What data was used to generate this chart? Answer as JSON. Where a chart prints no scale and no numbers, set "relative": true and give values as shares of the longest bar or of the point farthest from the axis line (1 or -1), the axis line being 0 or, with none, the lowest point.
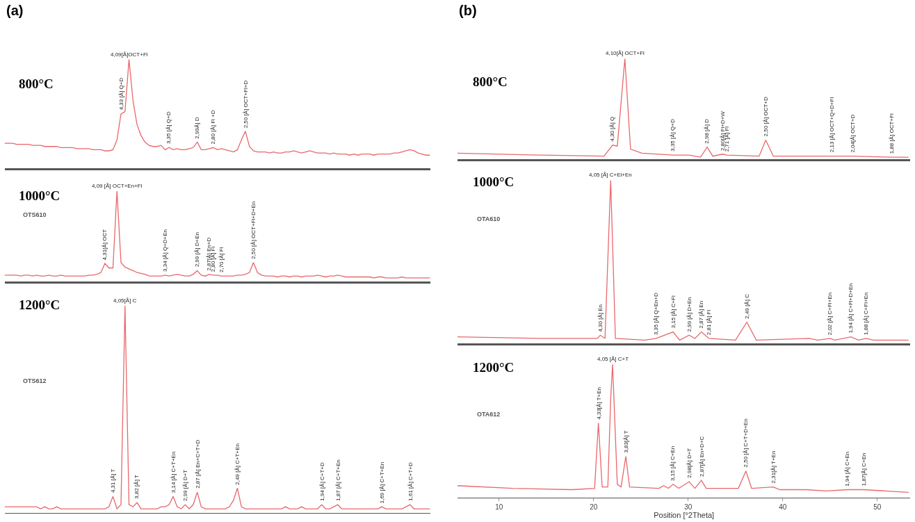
{
  "chart_data": [
    {
      "type": "line",
      "title": "(a)",
      "relative": true,
      "tick_labels": false,
      "categories": [
        null,
        null,
        null,
        null,
        null,
        null,
        null,
        null,
        null,
        null,
        null,
        null,
        null,
        null,
        null,
        null,
        null,
        null,
        null,
        null,
        null,
        null,
        null,
        null,
        null,
        null,
        null,
        null,
        null,
        null,
        null,
        null,
        null,
        null,
        null,
        null,
        null,
        null,
        null,
        null,
        null,
        null,
        null,
        null,
        null,
        null,
        null,
        null,
        null,
        null,
        null,
        null,
        null,
        null,
        null,
        null,
        null,
        null,
        null,
        null,
        null,
        null,
        null,
        null,
        null,
        null,
        null,
        null,
        null,
        null,
        null,
        null,
        null,
        null,
        null,
        null,
        null,
        null,
        null,
        null,
        null,
        null,
        null,
        null,
        null,
        null,
        null,
        null,
        null,
        null,
        null,
        null,
        null,
        null,
        null,
        null,
        null,
        null,
        null,
        null,
        null,
        null,
        null,
        null,
        null,
        null,
        null
      ],
      "series": [
        {
          "color": "#e8676b",
          "values": [
            0.23,
            0.23,
            0.23,
            0.22,
            0.22,
            0.22,
            0.22,
            0.21,
            0.21,
            0.21,
            0.2,
            0.2,
            0.2,
            0.2,
            0.19,
            0.19,
            0.19,
            0.19,
            0.18,
            0.18,
            0.18,
            0.18,
            0.17,
            0.17,
            0.17,
            0.16,
            0.16,
            0.17,
            0.26,
            0.5,
            0.52,
            1.0,
            0.62,
            0.4,
            0.3,
            0.24,
            0.21,
            0.2,
            0.2,
            0.21,
            0.17,
            0.19,
            0.17,
            0.18,
            0.17,
            0.17,
            0.18,
            0.19,
            0.24,
            0.17,
            0.17,
            0.18,
            0.19,
            0.17,
            0.18,
            0.17,
            0.16,
            0.15,
            0.17,
            0.26,
            0.34,
            0.2,
            0.16,
            0.15,
            0.15,
            0.15,
            0.14,
            0.15,
            0.14,
            0.14,
            0.15,
            0.15,
            0.16,
            0.15,
            0.14,
            0.15,
            0.16,
            0.15,
            0.14,
            0.14,
            0.14,
            0.13,
            0.14,
            0.13,
            0.13,
            0.13,
            0.12,
            0.13,
            0.12,
            0.13,
            0.13,
            0.13,
            0.12,
            0.13,
            0.13,
            0.13,
            0.13,
            0.14,
            0.14,
            0.15,
            0.16,
            0.17,
            0.16,
            0.14,
            0.13,
            0.12,
            0.12
          ]
        }
      ],
      "annotations": [
        "800°C",
        {
          "text": "4,33 [Å] Q+D",
          "y": 0.5
        },
        {
          "text": "4,09[Å]OCT+Fl",
          "y": 1.0
        },
        {
          "text": "3,35 [Å] Q+D",
          "y": 0.19
        },
        {
          "text": "2,99Å] D",
          "y": 0.24
        },
        {
          "text": "2,80 [Å] Fl +D",
          "y": 0.19
        },
        {
          "text": "2,50 [Å] OCT+Fl+D",
          "y": 0.34
        }
      ]
    },
    {
      "type": "line",
      "relative": true,
      "tick_labels": false,
      "categories": [
        null,
        null,
        null,
        null,
        null,
        null,
        null,
        null,
        null,
        null,
        null,
        null,
        null,
        null,
        null,
        null,
        null,
        null,
        null,
        null,
        null,
        null,
        null,
        null,
        null,
        null,
        null,
        null,
        null,
        null,
        null,
        null,
        null,
        null,
        null,
        null,
        null,
        null,
        null,
        null,
        null,
        null,
        null,
        null,
        null,
        null,
        null,
        null,
        null,
        null,
        null,
        null,
        null,
        null,
        null,
        null,
        null,
        null,
        null,
        null,
        null,
        null,
        null,
        null,
        null,
        null,
        null,
        null,
        null,
        null,
        null,
        null,
        null,
        null,
        null,
        null,
        null,
        null,
        null,
        null,
        null,
        null,
        null,
        null,
        null,
        null,
        null,
        null,
        null,
        null,
        null,
        null,
        null,
        null,
        null,
        null,
        null,
        null,
        null,
        null,
        null,
        null,
        null,
        null,
        null,
        null,
        null
      ],
      "series": [
        {
          "color": "#e8676b",
          "values": [
            0.07,
            0.07,
            0.07,
            0.07,
            0.06,
            0.07,
            0.07,
            0.06,
            0.07,
            0.06,
            0.06,
            0.07,
            0.06,
            0.06,
            0.07,
            0.06,
            0.06,
            0.06,
            0.06,
            0.06,
            0.06,
            0.07,
            0.07,
            0.08,
            0.1,
            0.2,
            0.15,
            0.15,
            1.0,
            0.21,
            0.16,
            0.14,
            0.12,
            0.1,
            0.09,
            0.08,
            0.06,
            0.06,
            0.06,
            0.06,
            0.07,
            0.06,
            0.07,
            0.08,
            0.07,
            0.06,
            0.06,
            0.08,
            0.12,
            0.07,
            0.06,
            0.08,
            0.07,
            0.07,
            0.06,
            0.06,
            0.06,
            0.06,
            0.07,
            0.07,
            0.08,
            0.1,
            0.21,
            0.1,
            0.07,
            0.06,
            0.06,
            0.06,
            0.05,
            0.06,
            0.06,
            0.05,
            0.06,
            0.06,
            0.05,
            0.06,
            0.06,
            0.06,
            0.07,
            0.06,
            0.05,
            0.06,
            0.06,
            0.07,
            0.06,
            0.05,
            0.05,
            0.05,
            0.05,
            0.05,
            0.05,
            0.05,
            0.04,
            0.05,
            0.05,
            0.04,
            0.04,
            0.04,
            0.04,
            0.05,
            0.04,
            0.04,
            0.04,
            0.04,
            0.04,
            0.04,
            0.04
          ]
        }
      ],
      "annotations": [
        "1000°C",
        "OTS610",
        {
          "text": "4,31[Å] OCT",
          "y": 0.2
        },
        {
          "text": "4,09 [Å] OCT+En+Fl",
          "y": 1.0
        },
        {
          "text": "3,34 [Å] Q+D+En",
          "y": 0.07
        },
        {
          "text": "2,99 [Å] D+En",
          "y": 0.12
        },
        {
          "text": "2,87[Å] En+D",
          "y": 0.08
        },
        {
          "text": "2,80 [Å] Fl",
          "y": 0.07
        },
        {
          "text": "2,70 [Å] Fl",
          "y": 0.06
        },
        {
          "text": "2,50 [Å] OCT+Fl+D+En",
          "y": 0.21
        }
      ]
    },
    {
      "type": "line",
      "relative": true,
      "tick_labels": false,
      "categories": [
        null,
        null,
        null,
        null,
        null,
        null,
        null,
        null,
        null,
        null,
        null,
        null,
        null,
        null,
        null,
        null,
        null,
        null,
        null,
        null,
        null,
        null,
        null,
        null,
        null,
        null,
        null,
        null,
        null,
        null,
        null,
        null,
        null,
        null,
        null,
        null,
        null,
        null,
        null,
        null,
        null,
        null,
        null,
        null,
        null,
        null,
        null,
        null,
        null,
        null,
        null,
        null,
        null,
        null,
        null,
        null,
        null,
        null,
        null,
        null,
        null,
        null,
        null,
        null,
        null,
        null,
        null,
        null,
        null,
        null,
        null,
        null,
        null,
        null,
        null,
        null,
        null,
        null,
        null,
        null,
        null,
        null,
        null,
        null,
        null,
        null,
        null,
        null,
        null,
        null,
        null,
        null,
        null,
        null,
        null,
        null,
        null,
        null,
        null,
        null,
        null,
        null,
        null,
        null,
        null,
        null,
        null
      ],
      "series": [
        {
          "color": "#e8676b",
          "values": [
            0.03,
            0.03,
            0.03,
            0.03,
            0.03,
            0.03,
            0.03,
            0.03,
            0.03,
            0.02,
            0.03,
            0.02,
            0.02,
            0.03,
            0.02,
            0.02,
            0.02,
            0.02,
            0.02,
            0.02,
            0.02,
            0.02,
            0.02,
            0.02,
            0.02,
            0.02,
            0.03,
            0.08,
            0.02,
            0.04,
            1.0,
            0.04,
            0.03,
            0.05,
            0.02,
            0.02,
            0.02,
            0.02,
            0.02,
            0.03,
            0.03,
            0.04,
            0.08,
            0.03,
            0.02,
            0.04,
            0.02,
            0.04,
            0.1,
            0.03,
            0.02,
            0.02,
            0.02,
            0.02,
            0.02,
            0.02,
            0.03,
            0.06,
            0.12,
            0.03,
            0.02,
            0.02,
            0.02,
            0.02,
            0.02,
            0.02,
            0.02,
            0.02,
            0.02,
            0.02,
            0.03,
            0.02,
            0.02,
            0.02,
            0.03,
            0.02,
            0.02,
            0.02,
            0.02,
            0.04,
            0.02,
            0.02,
            0.03,
            0.04,
            0.02,
            0.02,
            0.02,
            0.02,
            0.02,
            0.02,
            0.02,
            0.02,
            0.02,
            0.02,
            0.03,
            0.02,
            0.02,
            0.02,
            0.02,
            0.02,
            0.03,
            0.04,
            0.02,
            0.02,
            0.02,
            0.02,
            0.02
          ]
        }
      ],
      "annotations": [
        "1200°C",
        "OTS612",
        {
          "text": "4,31 [Å] T",
          "y": 0.08
        },
        {
          "text": "4,05[Å] C",
          "y": 1.0
        },
        {
          "text": "3,82 [Å] T",
          "y": 0.05
        },
        {
          "text": "3,14 [Å] C+T+En",
          "y": 0.08
        },
        {
          "text": "2,99 [Å] D+T",
          "y": 0.04
        },
        {
          "text": "2,87 [Å] En+C+T+D",
          "y": 0.1
        },
        {
          "text": "2,49 [Å] C+T+En",
          "y": 0.12
        },
        {
          "text": "1,94 [Å] C+T+D",
          "y": 0.04
        },
        {
          "text": "1,87 [Å] C+T+En",
          "y": 0.04
        },
        {
          "text": "1,69 [Å] C+T+En",
          "y": 0.03
        },
        {
          "text": "1,61 [Å] C+T+D",
          "y": 0.04
        }
      ]
    },
    {
      "type": "line",
      "title": "(b)",
      "relative": true,
      "tick_labels": false,
      "xlim": [
        5.6,
        53.5
      ],
      "x": [
        5.6,
        14.5,
        21.1,
        22.0,
        22.5,
        23.3,
        23.9,
        25.1,
        28.4,
        30.1,
        31.3,
        32.0,
        32.6,
        33.6,
        34.1,
        37.5,
        38.2,
        39.0,
        45.2,
        47.4,
        51.5,
        53.3
      ],
      "series": [
        {
          "color": "#e8676b",
          "values": [
            0.06,
            0.04,
            0.03,
            0.14,
            0.13,
            1.0,
            0.1,
            0.06,
            0.04,
            0.04,
            0.02,
            0.12,
            0.03,
            0.05,
            0.04,
            0.03,
            0.19,
            0.03,
            0.03,
            0.03,
            0.02,
            0.02
          ]
        }
      ],
      "annotations": [
        "800°C",
        {
          "text": "4,30 [Å] Q",
          "x": 22.0,
          "y": 0.14
        },
        {
          "text": "4,10[Å] OCT+Fl",
          "x": 23.3,
          "y": 1.0
        },
        {
          "text": "3,35 [Å] Q+D",
          "x": 28.4,
          "y": 0.04
        },
        {
          "text": "2,98 [Å] D",
          "x": 32.0,
          "y": 0.12
        },
        {
          "text": "2,80[Å] Fl+D+W",
          "x": 33.6,
          "y": 0.05
        },
        {
          "text": "2,71 [Å] Fl",
          "x": 34.1,
          "y": 0.04
        },
        {
          "text": "2,50 [Å] OCT+D",
          "x": 38.2,
          "y": 0.19
        },
        {
          "text": "2,13 [Å] OCT+Q+D+Fl",
          "x": 45.2,
          "y": 0.03
        },
        {
          "text": "2,04[Å] OCT+D",
          "x": 47.4,
          "y": 0.03
        },
        {
          "text": "1,88 [Å] OCT+Fl",
          "x": 51.5,
          "y": 0.02
        }
      ]
    },
    {
      "type": "line",
      "relative": true,
      "tick_labels": false,
      "xlim": [
        5.6,
        53.5
      ],
      "x": [
        5.6,
        14.5,
        20.4,
        20.7,
        21.2,
        21.8,
        22.3,
        25.4,
        26.6,
        28.4,
        29.1,
        30.1,
        30.7,
        31.4,
        32.2,
        35.0,
        36.2,
        37.2,
        42.8,
        43.7,
        45.0,
        45.5,
        47.2,
        48.0,
        48.8,
        49.6,
        53.3
      ],
      "series": [
        {
          "color": "#e8676b",
          "values": [
            0.04,
            0.03,
            0.03,
            0.05,
            0.03,
            1.0,
            0.03,
            0.02,
            0.03,
            0.07,
            0.02,
            0.05,
            0.03,
            0.07,
            0.03,
            0.02,
            0.13,
            0.02,
            0.03,
            0.02,
            0.03,
            0.02,
            0.04,
            0.02,
            0.03,
            0.02,
            0.02
          ]
        }
      ],
      "annotations": [
        "1000°C",
        "OTA610",
        {
          "text": "4,05 [Å] C+El+En",
          "x": 21.8,
          "y": 1.0
        },
        {
          "text": "4,30 [Å] En",
          "x": 20.7,
          "y": 0.05
        },
        {
          "text": "3,35 [Å] Q+En+D",
          "x": 26.6,
          "y": 0.03
        },
        {
          "text": "3,15 [Å] C+Fl",
          "x": 28.4,
          "y": 0.07
        },
        {
          "text": "2,99 [Å] D+En",
          "x": 30.1,
          "y": 0.05
        },
        {
          "text": "2,87 [Å] En",
          "x": 31.4,
          "y": 0.07
        },
        {
          "text": "2,81 [Å] Fl",
          "x": 32.2,
          "y": 0.03
        },
        {
          "text": "2,49 [Å] C",
          "x": 36.2,
          "y": 0.13
        },
        {
          "text": "2,02 [Å] C+Fl+En",
          "x": 45.0,
          "y": 0.03
        },
        {
          "text": "1,94 [Å] C+Fl+D+En",
          "x": 47.2,
          "y": 0.04
        },
        {
          "text": "1,88 [Å] C+Fl+En",
          "x": 48.8,
          "y": 0.03
        }
      ]
    },
    {
      "type": "line",
      "relative": true,
      "tick_labels": "x",
      "xlim": [
        5.6,
        53.5
      ],
      "xticks": [
        10,
        20,
        30,
        40,
        50
      ],
      "xlabel": "Position [°2Theta]",
      "x": [
        5.6,
        11.5,
        17.7,
        20.1,
        20.5,
        20.9,
        21.5,
        21.8,
        22.0,
        22.5,
        22.9,
        23.4,
        23.8,
        26.9,
        27.4,
        27.9,
        28.4,
        29.0,
        30.1,
        30.7,
        31.4,
        31.9,
        35.3,
        36.1,
        36.7,
        39.0,
        39.7,
        42.5,
        44.6,
        46.8,
        48.6,
        53.3
      ],
      "series": [
        {
          "color": "#e8676b",
          "values": [
            0.09,
            0.07,
            0.06,
            0.07,
            0.56,
            0.08,
            0.08,
            0.74,
            1.0,
            0.1,
            0.08,
            0.31,
            0.08,
            0.07,
            0.09,
            0.07,
            0.1,
            0.07,
            0.12,
            0.07,
            0.13,
            0.07,
            0.07,
            0.2,
            0.07,
            0.08,
            0.06,
            0.06,
            0.05,
            0.06,
            0.06,
            0.04
          ]
        }
      ],
      "annotations": [
        "1200°C",
        "OTA612",
        {
          "text": "4,33[Å] T+En",
          "x": 20.5,
          "y": 0.56
        },
        {
          "text": "4,05 [Å] C+T",
          "x": 22.0,
          "y": 1.0
        },
        {
          "text": "3,83[Å] T",
          "x": 23.4,
          "y": 0.31
        },
        {
          "text": "3,15 [Å] C+En",
          "x": 28.4,
          "y": 0.1
        },
        {
          "text": "2,98[Å] D+T",
          "x": 30.1,
          "y": 0.12
        },
        {
          "text": "2,87[Å] En+D+C",
          "x": 31.4,
          "y": 0.13
        },
        {
          "text": "2,50 [Å] C+T+D+En",
          "x": 36.1,
          "y": 0.2
        },
        {
          "text": "2,31[Å] T+En",
          "x": 39.0,
          "y": 0.08
        },
        {
          "text": "1,94 [Å] C+En",
          "x": 46.8,
          "y": 0.06
        },
        {
          "text": "1,87[Å] C+En",
          "x": 48.6,
          "y": 0.06
        }
      ]
    }
  ]
}
